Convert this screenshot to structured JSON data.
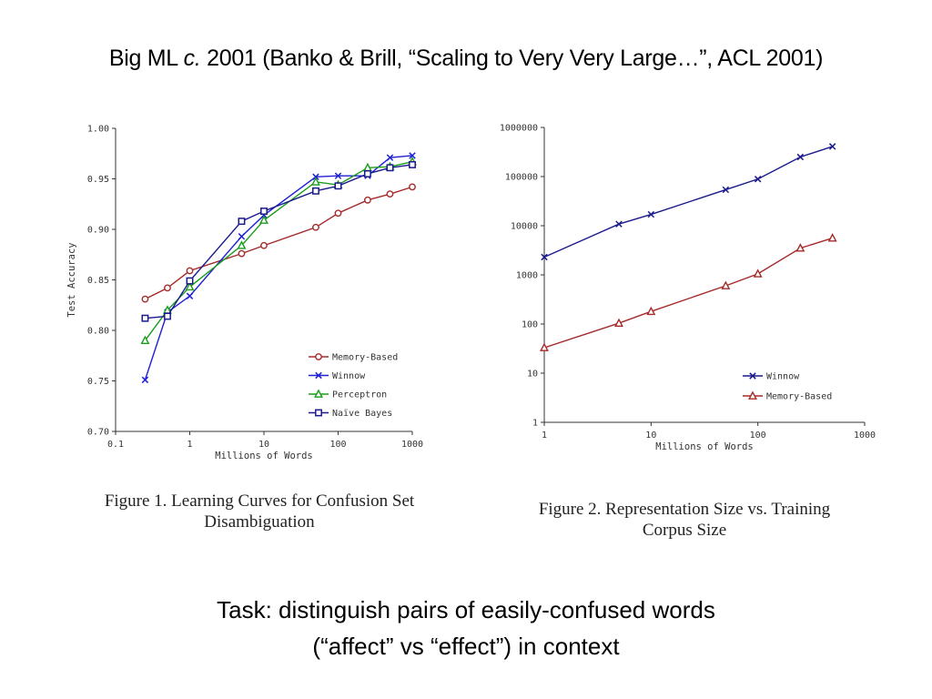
{
  "slide": {
    "title_prefix": "Big ML ",
    "title_italic": "c.",
    "title_suffix": " 2001 (Banko & Brill, “Scaling to Very Very Large…”, ACL 2001)",
    "task_line1": "Task: distinguish pairs of easily-confused words",
    "task_line2": "(“affect” vs “effect”) in context"
  },
  "chart_data": [
    {
      "type": "line",
      "caption_line1": "Figure 1. Learning Curves for Confusion Set",
      "caption_line2": "Disambiguation",
      "xlabel": "Millions of Words",
      "ylabel": "Test Accuracy",
      "xscale": "log",
      "xlim": [
        0.1,
        1000
      ],
      "ylim": [
        0.7,
        1.0
      ],
      "xticks": [
        "0.1",
        "1",
        "10",
        "100",
        "1000"
      ],
      "yticks": [
        "0.70",
        "0.75",
        "0.80",
        "0.85",
        "0.90",
        "0.95",
        "1.00"
      ],
      "legend_position": "bottom-right",
      "series": [
        {
          "name": "Memory-Based",
          "color": "#a52a2a",
          "marker": "circle",
          "x": [
            0.25,
            0.5,
            1,
            5,
            10,
            50,
            100,
            250,
            500,
            1000
          ],
          "y": [
            0.831,
            0.842,
            0.859,
            0.876,
            0.884,
            0.902,
            0.916,
            0.929,
            0.935,
            0.942
          ]
        },
        {
          "name": "Winnow",
          "color": "#1f1fd6",
          "marker": "x",
          "x": [
            0.25,
            0.5,
            1,
            5,
            10,
            50,
            100,
            250,
            500,
            1000
          ],
          "y": [
            0.751,
            0.818,
            0.834,
            0.893,
            0.914,
            0.952,
            0.953,
            0.953,
            0.971,
            0.973
          ]
        },
        {
          "name": "Perceptron",
          "color": "#1a9e1a",
          "marker": "triangle",
          "x": [
            0.25,
            0.5,
            1,
            5,
            10,
            50,
            100,
            250,
            500,
            1000
          ],
          "y": [
            0.79,
            0.82,
            0.843,
            0.884,
            0.909,
            0.947,
            0.944,
            0.961,
            0.962,
            0.967
          ]
        },
        {
          "name": "Naïve Bayes",
          "color": "#1a1a8c",
          "marker": "square",
          "x": [
            0.25,
            0.5,
            1,
            5,
            10,
            50,
            100,
            250,
            500,
            1000
          ],
          "y": [
            0.812,
            0.814,
            0.849,
            0.908,
            0.918,
            0.938,
            0.943,
            0.955,
            0.961,
            0.964
          ]
        }
      ]
    },
    {
      "type": "line",
      "caption_line1": "Figure 2. Representation Size vs. Training",
      "caption_line2": "Corpus Size",
      "xlabel": "Millions of Words",
      "ylabel": "",
      "xscale": "log",
      "yscale": "log",
      "xlim": [
        1,
        1000
      ],
      "ylim": [
        1,
        1000000
      ],
      "xticks": [
        "1",
        "10",
        "100",
        "1000"
      ],
      "yticks": [
        "1",
        "10",
        "100",
        "1000",
        "10000",
        "100000",
        "1000000"
      ],
      "legend_position": "bottom-right",
      "series": [
        {
          "name": "Winnow",
          "color": "#1a1a8c",
          "marker": "x",
          "x": [
            1,
            5,
            10,
            50,
            100,
            250,
            500
          ],
          "y": [
            2300,
            10800,
            17000,
            54000,
            89000,
            250000,
            410000
          ]
        },
        {
          "name": "Memory-Based",
          "color": "#a52a2a",
          "marker": "triangle",
          "x": [
            1,
            5,
            10,
            50,
            100,
            250,
            500
          ],
          "y": [
            33,
            104,
            180,
            600,
            1050,
            3500,
            5600
          ]
        }
      ]
    }
  ]
}
